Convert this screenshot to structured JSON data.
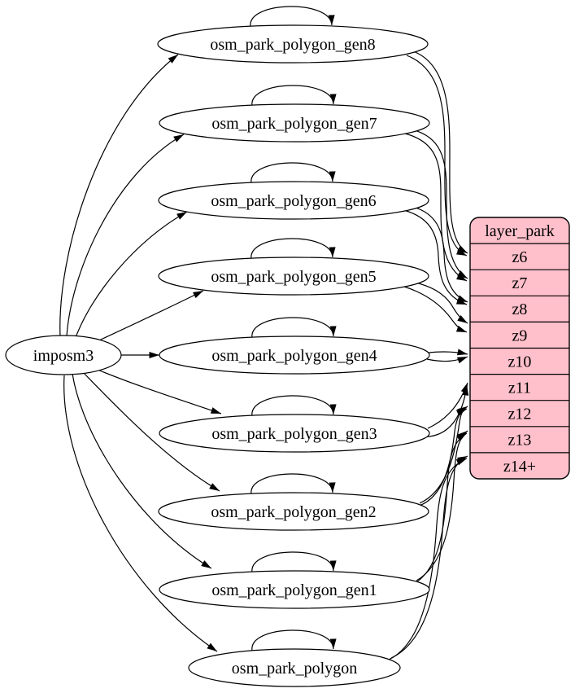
{
  "diagram": {
    "background_color": "#ffffff",
    "line_color": "#000000",
    "text_color": "#000000",
    "nodes": [
      {
        "id": "imposm3",
        "label": "imposm3"
      },
      {
        "id": "gen8",
        "label": "osm_park_polygon_gen8"
      },
      {
        "id": "gen7",
        "label": "osm_park_polygon_gen7"
      },
      {
        "id": "gen6",
        "label": "osm_park_polygon_gen6"
      },
      {
        "id": "gen5",
        "label": "osm_park_polygon_gen5"
      },
      {
        "id": "gen4",
        "label": "osm_park_polygon_gen4"
      },
      {
        "id": "gen3",
        "label": "osm_park_polygon_gen3"
      },
      {
        "id": "gen2",
        "label": "osm_park_polygon_gen2"
      },
      {
        "id": "gen1",
        "label": "osm_park_polygon_gen1"
      },
      {
        "id": "poly",
        "label": "osm_park_polygon"
      }
    ],
    "layer_table": {
      "id": "layer_park",
      "title": "layer_park",
      "fill_color": "#ffc0cb",
      "rows": [
        {
          "id": "z6",
          "label": "z6"
        },
        {
          "id": "z7",
          "label": "z7"
        },
        {
          "id": "z8",
          "label": "z8"
        },
        {
          "id": "z9",
          "label": "z9"
        },
        {
          "id": "z10",
          "label": "z10"
        },
        {
          "id": "z11",
          "label": "z11"
        },
        {
          "id": "z12",
          "label": "z12"
        },
        {
          "id": "z13",
          "label": "z13"
        },
        {
          "id": "z14",
          "label": "z14+"
        }
      ]
    },
    "edges": [
      {
        "from": "imposm3",
        "to": "gen8"
      },
      {
        "from": "imposm3",
        "to": "gen7"
      },
      {
        "from": "imposm3",
        "to": "gen6"
      },
      {
        "from": "imposm3",
        "to": "gen5"
      },
      {
        "from": "imposm3",
        "to": "gen4"
      },
      {
        "from": "imposm3",
        "to": "gen3"
      },
      {
        "from": "imposm3",
        "to": "gen2"
      },
      {
        "from": "imposm3",
        "to": "gen1"
      },
      {
        "from": "imposm3",
        "to": "poly"
      },
      {
        "from": "gen8",
        "to": "gen8"
      },
      {
        "from": "gen7",
        "to": "gen7"
      },
      {
        "from": "gen6",
        "to": "gen6"
      },
      {
        "from": "gen5",
        "to": "gen5"
      },
      {
        "from": "gen4",
        "to": "gen4"
      },
      {
        "from": "gen3",
        "to": "gen3"
      },
      {
        "from": "gen2",
        "to": "gen2"
      },
      {
        "from": "gen1",
        "to": "gen1"
      },
      {
        "from": "poly",
        "to": "poly"
      },
      {
        "from": "gen8",
        "to": "z6",
        "count": 2
      },
      {
        "from": "gen7",
        "to": "z7",
        "count": 2
      },
      {
        "from": "gen6",
        "to": "z8",
        "count": 2
      },
      {
        "from": "gen5",
        "to": "z9",
        "count": 2
      },
      {
        "from": "gen4",
        "to": "z10",
        "count": 2
      },
      {
        "from": "gen3",
        "to": "z11",
        "count": 2
      },
      {
        "from": "gen2",
        "to": "z12",
        "count": 2
      },
      {
        "from": "gen1",
        "to": "z13",
        "count": 2
      },
      {
        "from": "poly",
        "to": "z14",
        "count": 2
      }
    ]
  }
}
